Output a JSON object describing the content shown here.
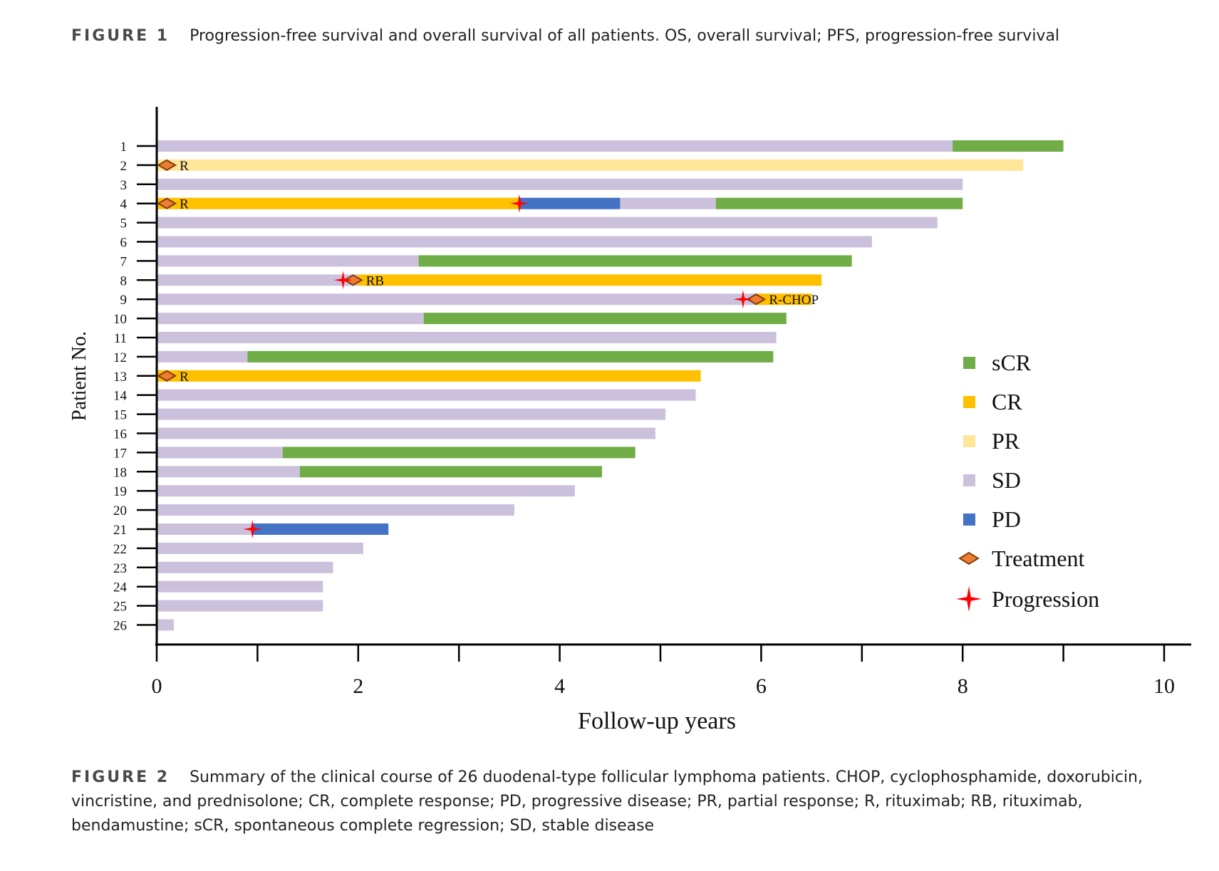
{
  "figure1": {
    "label": "FIGURE 1",
    "text": "Progression-free survival and overall survival of all patients. OS, overall survival; PFS, progression-free survival"
  },
  "figure2": {
    "label": "FIGURE 2",
    "text": "Summary of the clinical course of 26 duodenal-type follicular lymphoma patients. CHOP, cyclophosphamide, doxorubicin, vincristine, and prednisolone; CR, complete response; PD, progressive disease; PR, partial response; R, rituximab; RB, rituximab, bendamustine; sCR, spontaneous complete regression; SD, stable disease"
  },
  "colors": {
    "sCR": "#70ad47",
    "CR": "#ffc000",
    "PR": "#ffe699",
    "SD": "#ccc1dc",
    "PD": "#4472c4",
    "treatment_fill": "#ed7d31",
    "treatment_stroke": "#843c0c",
    "progression": "#ff0000"
  },
  "chart_data": {
    "type": "swimmer",
    "xlabel": "Follow-up years",
    "ylabel": "Patient No.",
    "xlim": [
      0,
      10
    ],
    "x_ticks": [
      0,
      2,
      4,
      6,
      8,
      10
    ],
    "x_minor_ticks": [
      1,
      3,
      5,
      7,
      9
    ],
    "legend": [
      {
        "key": "sCR",
        "label": "sCR",
        "kind": "square"
      },
      {
        "key": "CR",
        "label": "CR",
        "kind": "square"
      },
      {
        "key": "PR",
        "label": "PR",
        "kind": "square"
      },
      {
        "key": "SD",
        "label": "SD",
        "kind": "square"
      },
      {
        "key": "PD",
        "label": "PD",
        "kind": "square"
      },
      {
        "key": "treatment",
        "label": "Treatment",
        "kind": "diamond"
      },
      {
        "key": "progression",
        "label": "Progression",
        "kind": "star"
      }
    ],
    "patients": [
      {
        "id": "1",
        "segments": [
          {
            "status": "SD",
            "start": 0,
            "end": 7.9
          },
          {
            "status": "sCR",
            "start": 7.9,
            "end": 9.0
          }
        ]
      },
      {
        "id": "2",
        "segments": [
          {
            "status": "PR",
            "start": 0,
            "end": 8.6
          }
        ],
        "treatments": [
          {
            "x": 0.1,
            "label": "R"
          }
        ]
      },
      {
        "id": "3",
        "segments": [
          {
            "status": "SD",
            "start": 0,
            "end": 8.0
          }
        ]
      },
      {
        "id": "4",
        "segments": [
          {
            "status": "CR",
            "start": 0,
            "end": 3.6
          },
          {
            "status": "PD",
            "start": 3.6,
            "end": 4.6
          },
          {
            "status": "SD",
            "start": 4.6,
            "end": 5.55
          },
          {
            "status": "sCR",
            "start": 5.55,
            "end": 8.0
          }
        ],
        "treatments": [
          {
            "x": 0.1,
            "label": "R"
          }
        ],
        "progressions": [
          3.6
        ]
      },
      {
        "id": "5",
        "segments": [
          {
            "status": "SD",
            "start": 0,
            "end": 7.75
          }
        ]
      },
      {
        "id": "6",
        "segments": [
          {
            "status": "SD",
            "start": 0,
            "end": 7.1
          }
        ]
      },
      {
        "id": "7",
        "segments": [
          {
            "status": "SD",
            "start": 0,
            "end": 2.6
          },
          {
            "status": "sCR",
            "start": 2.6,
            "end": 6.9
          }
        ]
      },
      {
        "id": "8",
        "segments": [
          {
            "status": "SD",
            "start": 0,
            "end": 2.0
          },
          {
            "status": "CR",
            "start": 2.0,
            "end": 6.6
          }
        ],
        "treatments": [
          {
            "x": 1.95,
            "label": "RB"
          }
        ],
        "progressions": [
          1.85
        ]
      },
      {
        "id": "9",
        "segments": [
          {
            "status": "SD",
            "start": 0,
            "end": 5.95
          },
          {
            "status": "CR",
            "start": 5.95,
            "end": 6.5
          }
        ],
        "treatments": [
          {
            "x": 5.95,
            "label": "R-CHOP"
          }
        ],
        "progressions": [
          5.82
        ]
      },
      {
        "id": "10",
        "segments": [
          {
            "status": "SD",
            "start": 0,
            "end": 2.65
          },
          {
            "status": "sCR",
            "start": 2.65,
            "end": 6.25
          }
        ]
      },
      {
        "id": "11",
        "segments": [
          {
            "status": "SD",
            "start": 0,
            "end": 6.15
          }
        ]
      },
      {
        "id": "12",
        "segments": [
          {
            "status": "SD",
            "start": 0,
            "end": 0.9
          },
          {
            "status": "sCR",
            "start": 0.9,
            "end": 6.12
          }
        ]
      },
      {
        "id": "13",
        "segments": [
          {
            "status": "CR",
            "start": 0,
            "end": 5.4
          }
        ],
        "treatments": [
          {
            "x": 0.1,
            "label": "R"
          }
        ]
      },
      {
        "id": "14",
        "segments": [
          {
            "status": "SD",
            "start": 0,
            "end": 5.35
          }
        ]
      },
      {
        "id": "15",
        "segments": [
          {
            "status": "SD",
            "start": 0,
            "end": 5.05
          }
        ]
      },
      {
        "id": "16",
        "segments": [
          {
            "status": "SD",
            "start": 0,
            "end": 4.95
          }
        ]
      },
      {
        "id": "17",
        "segments": [
          {
            "status": "SD",
            "start": 0,
            "end": 1.25
          },
          {
            "status": "sCR",
            "start": 1.25,
            "end": 4.75
          }
        ]
      },
      {
        "id": "18",
        "segments": [
          {
            "status": "SD",
            "start": 0,
            "end": 1.42
          },
          {
            "status": "sCR",
            "start": 1.42,
            "end": 4.42
          }
        ]
      },
      {
        "id": "19",
        "segments": [
          {
            "status": "SD",
            "start": 0,
            "end": 4.15
          }
        ]
      },
      {
        "id": "20",
        "segments": [
          {
            "status": "SD",
            "start": 0,
            "end": 3.55
          }
        ]
      },
      {
        "id": "21",
        "segments": [
          {
            "status": "SD",
            "start": 0,
            "end": 0.95
          },
          {
            "status": "PD",
            "start": 0.95,
            "end": 2.3
          }
        ],
        "progressions": [
          0.95
        ]
      },
      {
        "id": "22",
        "segments": [
          {
            "status": "SD",
            "start": 0,
            "end": 2.05
          }
        ]
      },
      {
        "id": "23",
        "segments": [
          {
            "status": "SD",
            "start": 0,
            "end": 1.75
          }
        ]
      },
      {
        "id": "24",
        "segments": [
          {
            "status": "SD",
            "start": 0,
            "end": 1.65
          }
        ]
      },
      {
        "id": "25",
        "segments": [
          {
            "status": "SD",
            "start": 0,
            "end": 1.65
          }
        ]
      },
      {
        "id": "26",
        "segments": [
          {
            "status": "SD",
            "start": 0,
            "end": 0.17
          }
        ]
      }
    ]
  }
}
